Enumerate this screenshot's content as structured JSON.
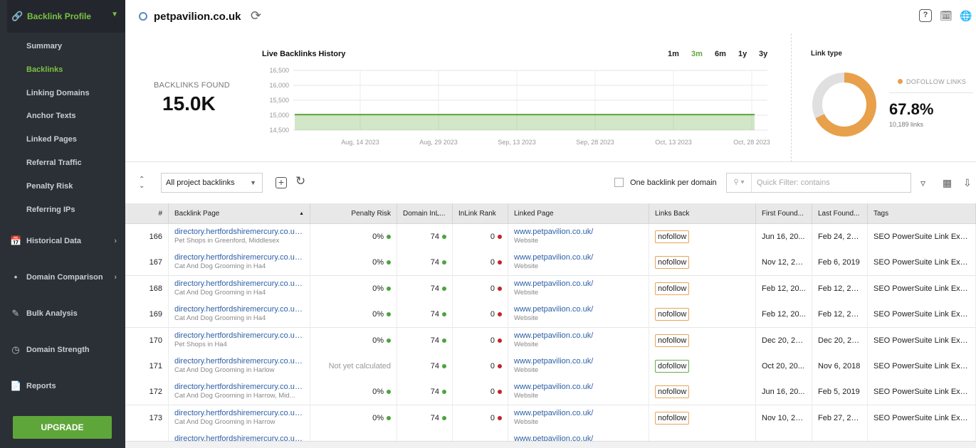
{
  "sidebar": {
    "section_title": "Backlink Profile",
    "sub_items": [
      {
        "label": "Summary"
      },
      {
        "label": "Backlinks"
      },
      {
        "label": "Linking Domains"
      },
      {
        "label": "Anchor Texts"
      },
      {
        "label": "Linked Pages"
      },
      {
        "label": "Referral Traffic"
      },
      {
        "label": "Penalty Risk"
      },
      {
        "label": "Referring IPs"
      }
    ],
    "main_items": [
      {
        "label": "Historical Data"
      },
      {
        "label": "Domain Comparison"
      },
      {
        "label": "Bulk Analysis"
      },
      {
        "label": "Domain Strength"
      },
      {
        "label": "Reports"
      }
    ],
    "upgrade_label": "UPGRADE"
  },
  "header": {
    "domain": "petpavilion.co.uk",
    "help_glyph": "?"
  },
  "stats": {
    "found_label": "BACKLINKS FOUND",
    "found_value": "15.0K"
  },
  "history": {
    "title": "Live Backlinks History",
    "ranges": [
      "1m",
      "3m",
      "6m",
      "1y",
      "3y"
    ],
    "active_range": "3m"
  },
  "chart_data": {
    "type": "area",
    "title": "Live Backlinks History",
    "y_ticks": [
      "16,500",
      "16,000",
      "15,500",
      "15,000",
      "14,500"
    ],
    "ylim": [
      14500,
      16500
    ],
    "x_ticks": [
      "Aug, 14 2023",
      "Aug, 29 2023",
      "Sep, 13 2023",
      "Sep, 28 2023",
      "Oct, 13 2023",
      "Oct, 28 2023"
    ],
    "series": [
      {
        "values": [
          15020,
          15020,
          15020,
          15020,
          15020,
          15020
        ]
      }
    ],
    "color": "#5ea63a",
    "grid": true
  },
  "link_type": {
    "title": "Link type",
    "legend_label": "DOFOLLOW LINKS",
    "percent": "67.8%",
    "percent_value": 67.8,
    "links_text": "10,189 links",
    "dofollow_color": "#e8a04a",
    "other_color": "#e0e0e0"
  },
  "toolbar": {
    "filter_value": "All project backlinks",
    "one_per_domain_label": "One backlink per domain",
    "quick_filter_placeholder": "Quick Filter: contains"
  },
  "table": {
    "columns": [
      "#",
      "Backlink Page",
      "Penalty Risk",
      "Domain InL...",
      "InLink Rank",
      "Linked Page",
      "Links Back",
      "First Found...",
      "Last Found...",
      "Tags"
    ],
    "rows": [
      {
        "num": "166",
        "page": "directory.hertfordshiremercury.co.uk/...",
        "page_sub": "Pet Shops in Greenford, Middlesex",
        "risk": "0%",
        "domain_inlink": "74",
        "inlink_rank": "0",
        "linked": "www.petpavilion.co.uk/",
        "linked_sub": "Website",
        "links_back": "nofollow",
        "first": "Jun 16, 20...",
        "last": "Feb 24, 20...",
        "tags": "SEO PowerSuite Link Exp..."
      },
      {
        "num": "167",
        "page": "directory.hertfordshiremercury.co.uk/...",
        "page_sub": "Cat And Dog Grooming in Ha4",
        "risk": "0%",
        "domain_inlink": "74",
        "inlink_rank": "0",
        "linked": "www.petpavilion.co.uk/",
        "linked_sub": "Website",
        "links_back": "nofollow",
        "first": "Nov 12, 20...",
        "last": "Feb 6, 2019",
        "tags": "SEO PowerSuite Link Exp..."
      },
      {
        "num": "168",
        "page": "directory.hertfordshiremercury.co.uk/...",
        "page_sub": "Cat And Dog Grooming in Ha4",
        "risk": "0%",
        "domain_inlink": "74",
        "inlink_rank": "0",
        "linked": "www.petpavilion.co.uk/",
        "linked_sub": "Website",
        "links_back": "nofollow",
        "first": "Feb 12, 20...",
        "last": "Feb 12, 20...",
        "tags": "SEO PowerSuite Link Exp..."
      },
      {
        "num": "169",
        "page": "directory.hertfordshiremercury.co.uk/...",
        "page_sub": "Cat And Dog Grooming in Ha4",
        "risk": "0%",
        "domain_inlink": "74",
        "inlink_rank": "0",
        "linked": "www.petpavilion.co.uk/",
        "linked_sub": "Website",
        "links_back": "nofollow",
        "first": "Feb 12, 20...",
        "last": "Feb 12, 20...",
        "tags": "SEO PowerSuite Link Exp..."
      },
      {
        "num": "170",
        "page": "directory.hertfordshiremercury.co.uk/...",
        "page_sub": "Pet Shops in Ha4",
        "risk": "0%",
        "domain_inlink": "74",
        "inlink_rank": "0",
        "linked": "www.petpavilion.co.uk/",
        "linked_sub": "Website",
        "links_back": "nofollow",
        "first": "Dec 20, 20...",
        "last": "Dec 20, 20...",
        "tags": "SEO PowerSuite Link Exp..."
      },
      {
        "num": "171",
        "page": "directory.hertfordshiremercury.co.uk/...",
        "page_sub": "Cat And Dog Grooming in Harlow",
        "risk": "Not yet calculated",
        "domain_inlink": "74",
        "inlink_rank": "0",
        "linked": "www.petpavilion.co.uk/",
        "linked_sub": "Website",
        "links_back": "dofollow",
        "first": "Oct 20, 20...",
        "last": "Nov 6, 2018",
        "tags": "SEO PowerSuite Link Exp..."
      },
      {
        "num": "172",
        "page": "directory.hertfordshiremercury.co.uk/...",
        "page_sub": "Cat And Dog Grooming in Harrow, Mid...",
        "risk": "0%",
        "domain_inlink": "74",
        "inlink_rank": "0",
        "linked": "www.petpavilion.co.uk/",
        "linked_sub": "Website",
        "links_back": "nofollow",
        "first": "Jun 16, 20...",
        "last": "Feb 5, 2019",
        "tags": "SEO PowerSuite Link Exp..."
      },
      {
        "num": "173",
        "page": "directory.hertfordshiremercury.co.uk/...",
        "page_sub": "Cat And Dog Grooming in Harrow",
        "risk": "0%",
        "domain_inlink": "74",
        "inlink_rank": "0",
        "linked": "www.petpavilion.co.uk/",
        "linked_sub": "Website",
        "links_back": "nofollow",
        "first": "Nov 10, 20...",
        "last": "Feb 27, 20...",
        "tags": "SEO PowerSuite Link Exp..."
      },
      {
        "num": "",
        "page": "directory.hertfordshiremercury.co.uk/...",
        "page_sub": "",
        "risk": "",
        "domain_inlink": "",
        "inlink_rank": "",
        "linked": "www.petpavilion.co.uk/",
        "linked_sub": "",
        "links_back": "",
        "first": "",
        "last": "",
        "tags": ""
      }
    ]
  }
}
